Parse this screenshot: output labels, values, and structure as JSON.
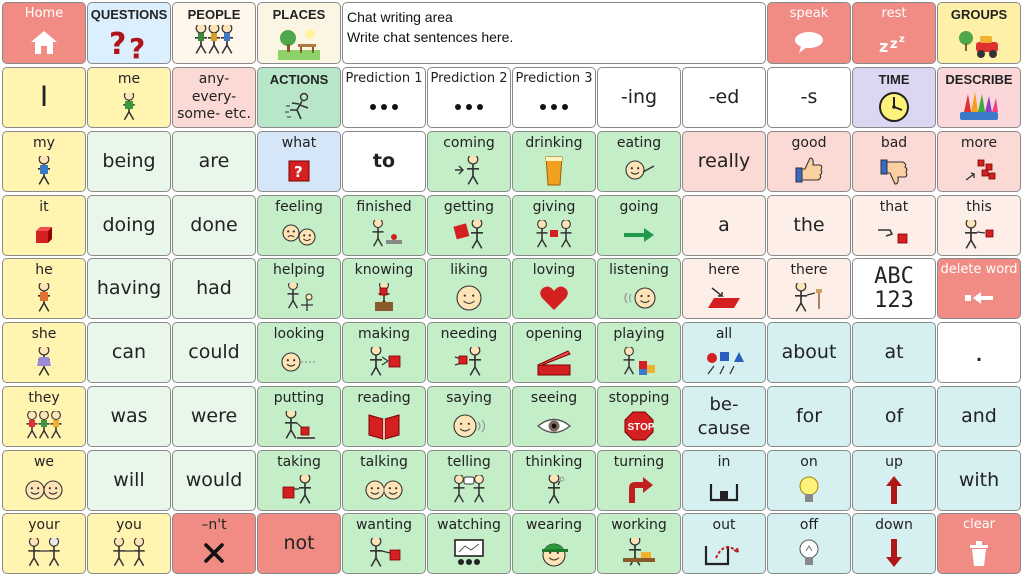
{
  "chat": {
    "label": "Chat writing area",
    "placeholder": "Write chat sentences here."
  },
  "colors": {
    "yellow": "#fff4b0",
    "green": "#c4eec8",
    "light_green": "#e8f7ea",
    "pink": "#fbd9d4",
    "red": "#f08c84",
    "cyan": "#d6f0f2",
    "purple": "#ddd6f3"
  },
  "top_row": [
    {
      "id": "home",
      "label": "Home",
      "icon": "house-icon"
    },
    {
      "id": "questions",
      "label": "QUESTIONS",
      "icon": "question-marks-icon"
    },
    {
      "id": "people",
      "label": "PEOPLE",
      "icon": "people-icon"
    },
    {
      "id": "places",
      "label": "PLACES",
      "icon": "park-icon"
    },
    {
      "id": "speak",
      "label": "speak",
      "icon": "speech-bubble-icon"
    },
    {
      "id": "rest",
      "label": "rest",
      "icon": "sleep-icon"
    },
    {
      "id": "groups",
      "label": "GROUPS",
      "icon": "toys-icon"
    }
  ],
  "rows": [
    [
      {
        "label": "I",
        "icon": ""
      },
      {
        "label": "me",
        "icon": "me-icon"
      },
      {
        "label": "any-\nevery-\nsome- etc.",
        "icon": ""
      },
      {
        "label": "ACTIONS",
        "icon": "running-icon"
      },
      {
        "label": "Prediction 1",
        "icon": "dots-icon"
      },
      {
        "label": "Prediction 2",
        "icon": "dots-icon"
      },
      {
        "label": "Prediction 3",
        "icon": "dots-icon"
      },
      {
        "label": "-ing",
        "icon": ""
      },
      {
        "label": "-ed",
        "icon": ""
      },
      {
        "label": "-s",
        "icon": ""
      },
      {
        "label": "TIME",
        "icon": "clock-icon"
      },
      {
        "label": "DESCRIBE",
        "icon": "crayons-icon"
      }
    ],
    [
      {
        "label": "my",
        "icon": "person-icon"
      },
      {
        "label": "being",
        "icon": ""
      },
      {
        "label": "are",
        "icon": ""
      },
      {
        "label": "what",
        "icon": "question-box-icon"
      },
      {
        "label": "to",
        "icon": ""
      },
      {
        "label": "coming",
        "icon": "coming-icon"
      },
      {
        "label": "drinking",
        "icon": "cup-icon"
      },
      {
        "label": "eating",
        "icon": "eating-icon"
      },
      {
        "label": "really",
        "icon": ""
      },
      {
        "label": "good",
        "icon": "thumbs-up-icon"
      },
      {
        "label": "bad",
        "icon": "thumbs-down-icon"
      },
      {
        "label": "more",
        "icon": "more-icon"
      }
    ],
    [
      {
        "label": "it",
        "icon": "red-cube-icon"
      },
      {
        "label": "doing",
        "icon": ""
      },
      {
        "label": "done",
        "icon": ""
      },
      {
        "label": "feeling",
        "icon": "feeling-faces-icon"
      },
      {
        "label": "finished",
        "icon": "finished-icon"
      },
      {
        "label": "getting",
        "icon": "getting-icon"
      },
      {
        "label": "giving",
        "icon": "giving-icon"
      },
      {
        "label": "going",
        "icon": "arrow-right-icon"
      },
      {
        "label": "a",
        "icon": ""
      },
      {
        "label": "the",
        "icon": ""
      },
      {
        "label": "that",
        "icon": "that-icon"
      },
      {
        "label": "this",
        "icon": "this-icon"
      }
    ],
    [
      {
        "label": "he",
        "icon": "boy-icon"
      },
      {
        "label": "having",
        "icon": ""
      },
      {
        "label": "had",
        "icon": ""
      },
      {
        "label": "helping",
        "icon": "helping-icon"
      },
      {
        "label": "knowing",
        "icon": "knowing-icon"
      },
      {
        "label": "liking",
        "icon": "smile-face-icon"
      },
      {
        "label": "loving",
        "icon": "heart-icon"
      },
      {
        "label": "listening",
        "icon": "listening-icon"
      },
      {
        "label": "here",
        "icon": "here-icon"
      },
      {
        "label": "there",
        "icon": "there-icon"
      },
      {
        "label": "ABC\n123",
        "icon": ""
      },
      {
        "label": "delete word",
        "icon": "delete-arrow-icon"
      }
    ],
    [
      {
        "label": "she",
        "icon": "girl-icon"
      },
      {
        "label": "can",
        "icon": ""
      },
      {
        "label": "could",
        "icon": ""
      },
      {
        "label": "looking",
        "icon": "looking-icon"
      },
      {
        "label": "making",
        "icon": "making-icon"
      },
      {
        "label": "needing",
        "icon": "needing-icon"
      },
      {
        "label": "opening",
        "icon": "opening-icon"
      },
      {
        "label": "playing",
        "icon": "playing-icon"
      },
      {
        "label": "all",
        "icon": "shapes-icon"
      },
      {
        "label": "about",
        "icon": ""
      },
      {
        "label": "at",
        "icon": ""
      },
      {
        "label": ".",
        "icon": ""
      }
    ],
    [
      {
        "label": "they",
        "icon": "group-icon"
      },
      {
        "label": "was",
        "icon": ""
      },
      {
        "label": "were",
        "icon": ""
      },
      {
        "label": "putting",
        "icon": "putting-icon"
      },
      {
        "label": "reading",
        "icon": "book-icon"
      },
      {
        "label": "saying",
        "icon": "saying-icon"
      },
      {
        "label": "seeing",
        "icon": "eye-icon"
      },
      {
        "label": "stopping",
        "icon": "stop-sign-icon"
      },
      {
        "label": "be-\ncause",
        "icon": ""
      },
      {
        "label": "for",
        "icon": ""
      },
      {
        "label": "of",
        "icon": ""
      },
      {
        "label": "and",
        "icon": ""
      }
    ],
    [
      {
        "label": "we",
        "icon": "two-faces-icon"
      },
      {
        "label": "will",
        "icon": ""
      },
      {
        "label": "would",
        "icon": ""
      },
      {
        "label": "taking",
        "icon": "taking-icon"
      },
      {
        "label": "talking",
        "icon": "talking-icon"
      },
      {
        "label": "telling",
        "icon": "telling-icon"
      },
      {
        "label": "thinking",
        "icon": "thinking-icon"
      },
      {
        "label": "turning",
        "icon": "turn-arrow-icon"
      },
      {
        "label": "in",
        "icon": "in-box-icon"
      },
      {
        "label": "on",
        "icon": "bulb-on-icon"
      },
      {
        "label": "up",
        "icon": "arrow-up-icon"
      },
      {
        "label": "with",
        "icon": ""
      }
    ],
    [
      {
        "label": "your",
        "icon": "your-icon"
      },
      {
        "label": "you",
        "icon": "you-icon"
      },
      {
        "label": "–n't",
        "icon": "cross-icon"
      },
      {
        "label": "not",
        "icon": ""
      },
      {
        "label": "wanting",
        "icon": "wanting-icon"
      },
      {
        "label": "watching",
        "icon": "watching-icon"
      },
      {
        "label": "wearing",
        "icon": "cap-face-icon"
      },
      {
        "label": "working",
        "icon": "working-icon"
      },
      {
        "label": "out",
        "icon": "out-box-icon"
      },
      {
        "label": "off",
        "icon": "bulb-off-icon"
      },
      {
        "label": "down",
        "icon": "arrow-down-icon"
      },
      {
        "label": "clear",
        "icon": "bin-icon"
      }
    ]
  ]
}
